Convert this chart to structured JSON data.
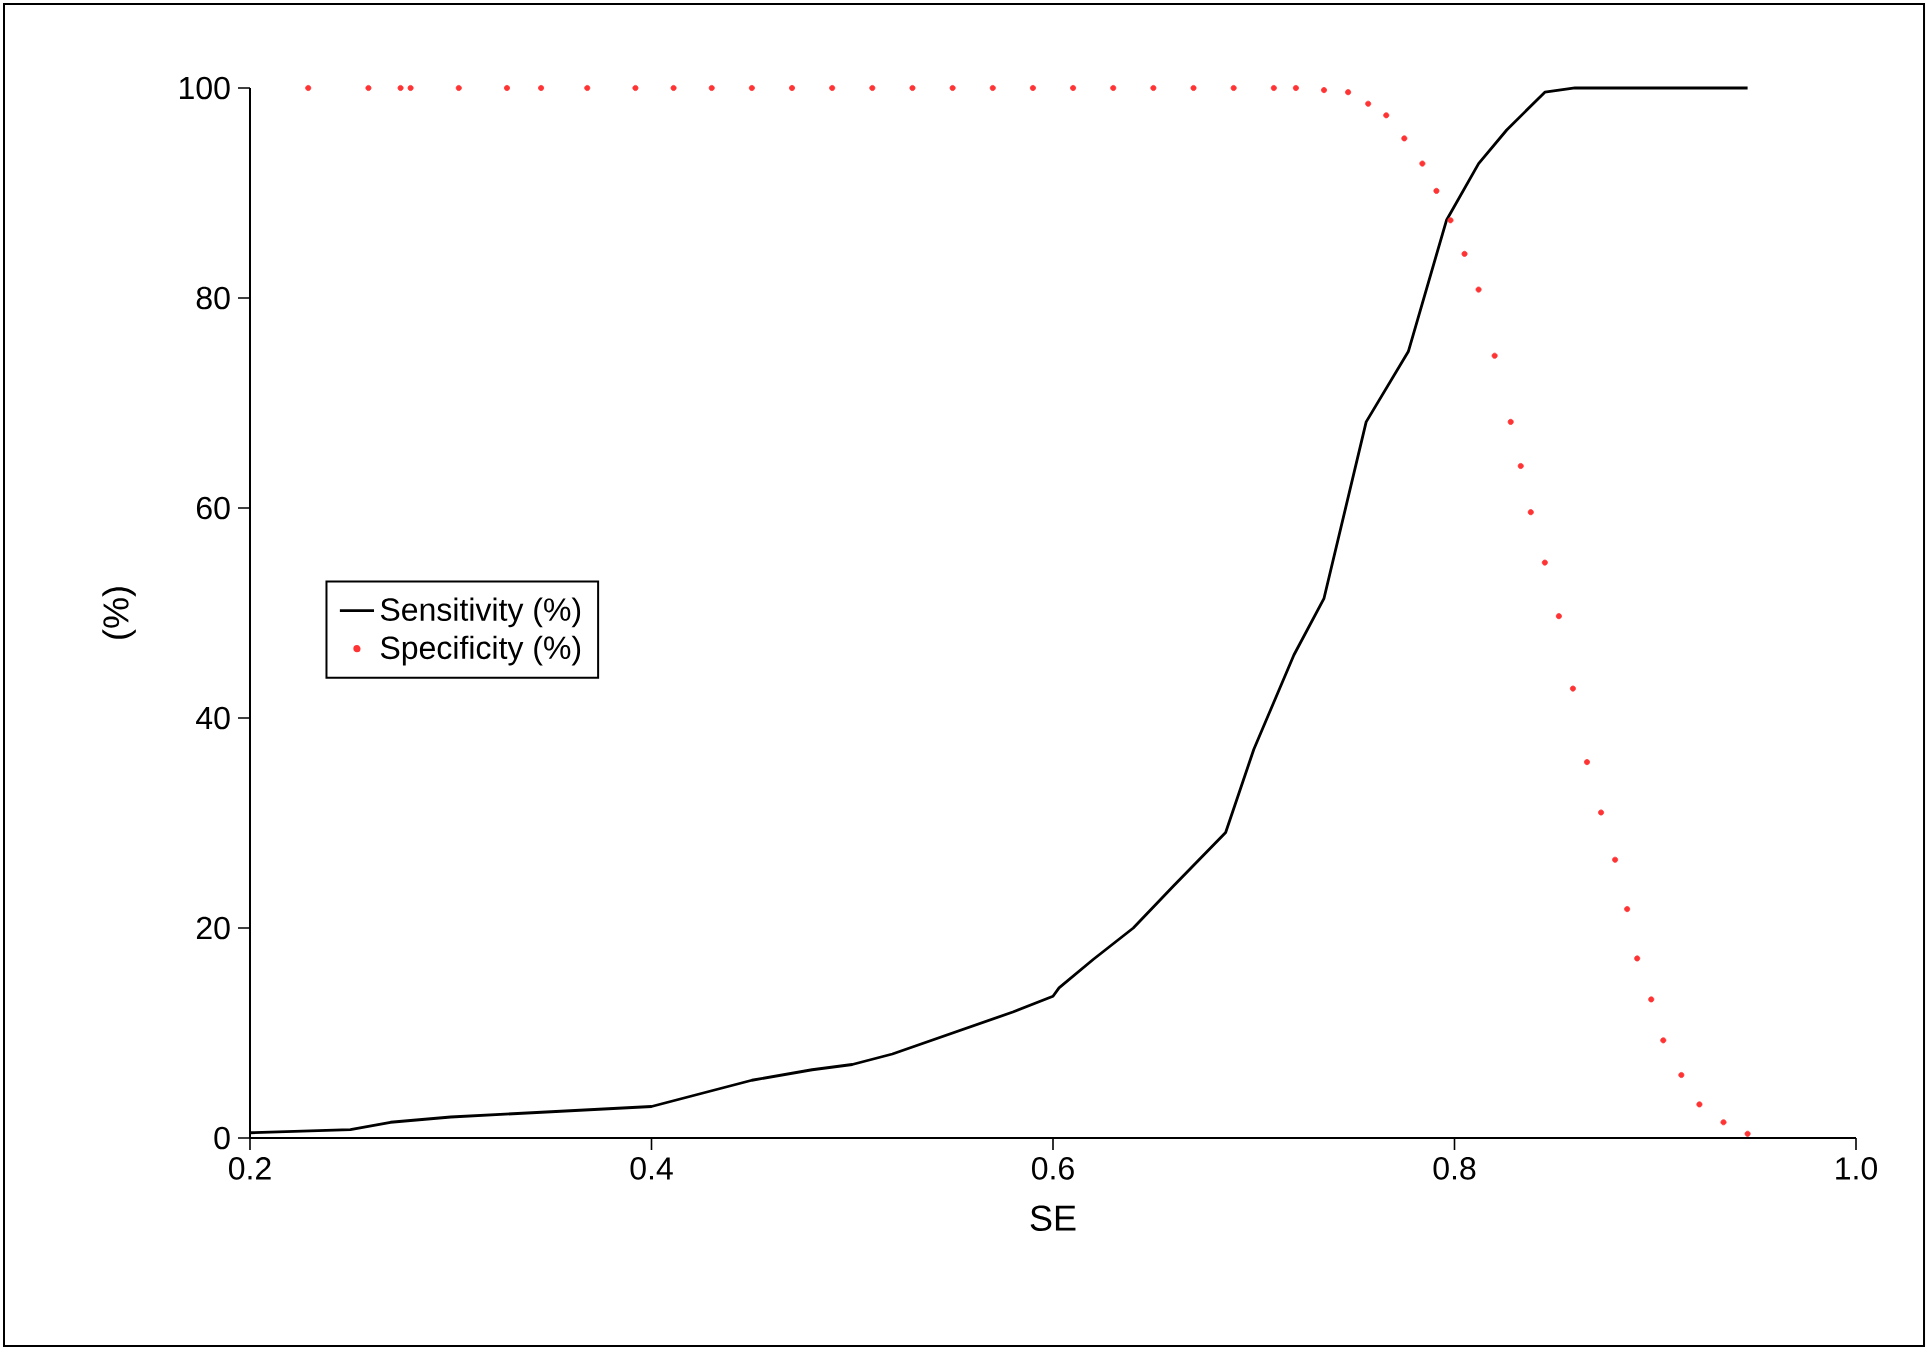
{
  "chart_data": {
    "type": "line",
    "xlabel": "SE",
    "ylabel": "(%)",
    "xlim": [
      0.2,
      1.0
    ],
    "ylim": [
      0,
      100
    ],
    "xticks": [
      0.2,
      0.4,
      0.6,
      0.8,
      {
        "value": 1.0,
        "label": "1.0"
      }
    ],
    "yticks": [
      0,
      20,
      40,
      60,
      80,
      100
    ],
    "legend": "left",
    "grid": false,
    "series": [
      {
        "name": "Sensitivity (%)",
        "color": "#000000",
        "marker": "none",
        "x": [
          0.2,
          0.25,
          0.27,
          0.3,
          0.35,
          0.4,
          0.42,
          0.45,
          0.48,
          0.5,
          0.52,
          0.55,
          0.58,
          0.6,
          0.603,
          0.62,
          0.64,
          0.66,
          0.686,
          0.7,
          0.72,
          0.735,
          0.756,
          0.777,
          0.796,
          0.812,
          0.826,
          0.845,
          0.86,
          0.9,
          0.946
        ],
        "values": [
          0.5,
          0.8,
          1.5,
          2,
          2.5,
          3,
          4,
          5.5,
          6.5,
          7,
          8,
          10,
          12,
          13.5,
          14.3,
          17,
          20,
          24,
          29.1,
          37,
          46,
          51.4,
          68.2,
          74.9,
          87.4,
          92.8,
          96,
          99.6,
          100,
          100,
          100
        ]
      },
      {
        "name": "Specificity (%)",
        "type": "scatter",
        "color": "#ff3333",
        "marker": "circle",
        "x": [
          0.229,
          0.259,
          0.275,
          0.28,
          0.304,
          0.328,
          0.345,
          0.368,
          0.392,
          0.411,
          0.43,
          0.45,
          0.47,
          0.49,
          0.51,
          0.53,
          0.55,
          0.57,
          0.59,
          0.61,
          0.63,
          0.65,
          0.67,
          0.69,
          0.71,
          0.721,
          0.735,
          0.747,
          0.757,
          0.766,
          0.775,
          0.784,
          0.791,
          0.798,
          0.805,
          0.812,
          0.82,
          0.828,
          0.833,
          0.838,
          0.845,
          0.852,
          0.859,
          0.866,
          0.873,
          0.88,
          0.886,
          0.891,
          0.898,
          0.904,
          0.913,
          0.922,
          0.934,
          0.946
        ],
        "values": [
          100,
          100,
          100,
          100,
          100,
          100,
          100,
          100,
          100,
          100,
          100,
          100,
          100,
          100,
          100,
          100,
          100,
          100,
          100,
          100,
          100,
          100,
          100,
          100,
          100,
          100,
          99.8,
          99.6,
          98.5,
          97.4,
          95.2,
          92.8,
          90.2,
          87.4,
          84.2,
          80.8,
          74.5,
          68.2,
          64,
          59.6,
          54.8,
          49.7,
          42.8,
          35.8,
          31,
          26.5,
          21.8,
          17.1,
          13.2,
          9.3,
          6,
          3.2,
          1.5,
          0.4
        ]
      }
    ]
  }
}
